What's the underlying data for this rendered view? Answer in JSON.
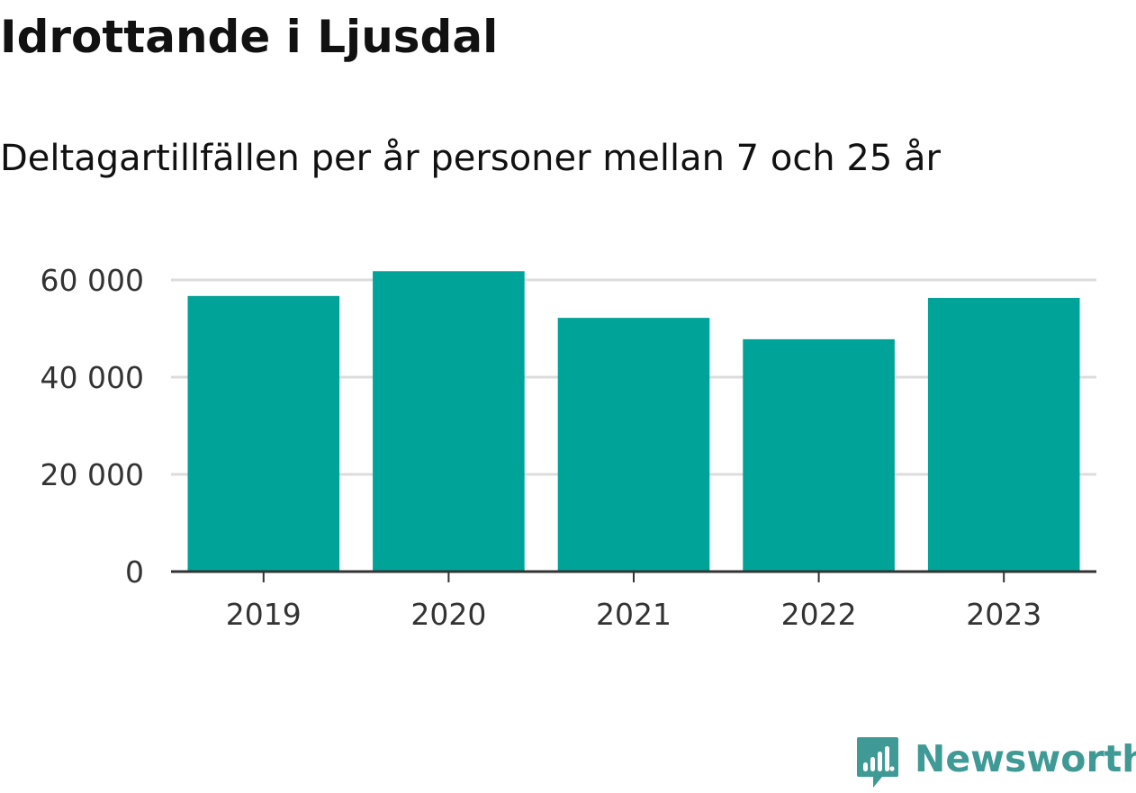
{
  "title": "Idrottande i Ljusdal",
  "subtitle": "Deltagartillfällen per år personer mellan 7 och 25 år",
  "brand": {
    "name": "Newsworthy",
    "color": "#3f9a96",
    "icon": "newsworthy-logo-icon"
  },
  "colors": {
    "bar": "#00a398",
    "grid": "#dcdcdc",
    "axis": "#333333",
    "tick_text": "#333333"
  },
  "chart_data": {
    "type": "bar",
    "title": "Idrottande i Ljusdal",
    "subtitle": "Deltagartillfällen per år personer mellan 7 och 25 år",
    "xlabel": "",
    "ylabel": "",
    "categories": [
      "2019",
      "2020",
      "2021",
      "2022",
      "2023"
    ],
    "values": [
      56700,
      61800,
      52200,
      47800,
      56300
    ],
    "ylim": [
      0,
      60000
    ],
    "yticks": [
      0,
      20000,
      40000,
      60000
    ],
    "ytick_labels": [
      "0",
      "20 000",
      "40 000",
      "60 000"
    ],
    "grid": true,
    "legend": "none"
  }
}
